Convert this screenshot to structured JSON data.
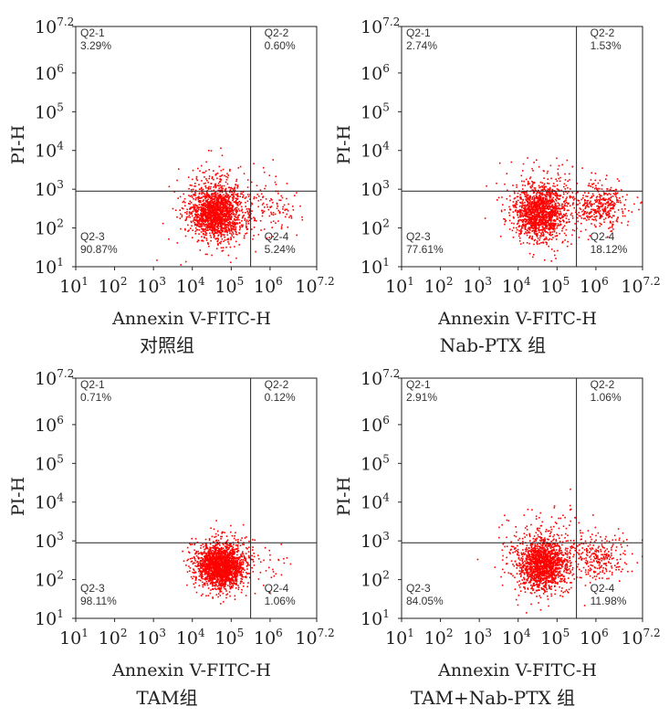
{
  "chart_data": [
    {
      "type": "scatter",
      "title": "对照组",
      "xlabel": "Annexin V-FITC-H",
      "ylabel": "PI-H",
      "xscale": "log",
      "yscale": "log",
      "xlim": [
        1,
        7.2
      ],
      "ylim": [
        1,
        7.2
      ],
      "x_ticks": [
        "1",
        "2",
        "3",
        "4",
        "5",
        "6",
        "7.2"
      ],
      "y_ticks": [
        "1",
        "2",
        "3",
        "4",
        "5",
        "6",
        "7.2"
      ],
      "gate_x": 5.5,
      "gate_y": 2.95,
      "quadrants": {
        "Q2-1": {
          "label": "Q2-1",
          "value": "3.29%"
        },
        "Q2-2": {
          "label": "Q2-2",
          "value": "0.60%"
        },
        "Q2-3": {
          "label": "Q2-3",
          "value": "90.87%"
        },
        "Q2-4": {
          "label": "Q2-4",
          "value": "5.24%"
        }
      },
      "clusters": [
        {
          "cx": 4.6,
          "cy": 2.4,
          "sx": 0.32,
          "sy": 0.32,
          "n": 1400
        },
        {
          "cx": 4.7,
          "cy": 2.6,
          "sx": 0.55,
          "sy": 0.6,
          "n": 350
        },
        {
          "cx": 6.0,
          "cy": 2.5,
          "sx": 0.4,
          "sy": 0.3,
          "n": 110
        }
      ],
      "color": "#ff0000"
    },
    {
      "type": "scatter",
      "title": "Nab-PTX 组",
      "xlabel": "Annexin V-FITC-H",
      "ylabel": "PI-H",
      "xscale": "log",
      "yscale": "log",
      "xlim": [
        1,
        7.2
      ],
      "ylim": [
        1,
        7.2
      ],
      "x_ticks": [
        "1",
        "2",
        "3",
        "4",
        "5",
        "6",
        "7.2"
      ],
      "y_ticks": [
        "1",
        "2",
        "3",
        "4",
        "5",
        "6",
        "7.2"
      ],
      "gate_x": 5.5,
      "gate_y": 2.95,
      "quadrants": {
        "Q2-1": {
          "label": "Q2-1",
          "value": "2.74%"
        },
        "Q2-2": {
          "label": "Q2-2",
          "value": "1.53%"
        },
        "Q2-3": {
          "label": "Q2-3",
          "value": "77.61%"
        },
        "Q2-4": {
          "label": "Q2-4",
          "value": "18.12%"
        }
      },
      "clusters": [
        {
          "cx": 4.55,
          "cy": 2.4,
          "sx": 0.32,
          "sy": 0.33,
          "n": 1200
        },
        {
          "cx": 4.6,
          "cy": 2.6,
          "sx": 0.55,
          "sy": 0.6,
          "n": 300
        },
        {
          "cx": 6.1,
          "cy": 2.6,
          "sx": 0.35,
          "sy": 0.3,
          "n": 380
        }
      ],
      "color": "#ff0000"
    },
    {
      "type": "scatter",
      "title": "TAM组",
      "xlabel": "Annexin V-FITC-H",
      "ylabel": "PI-H",
      "xscale": "log",
      "yscale": "log",
      "xlim": [
        1,
        7.2
      ],
      "ylim": [
        1,
        7.2
      ],
      "x_ticks": [
        "1",
        "2",
        "3",
        "4",
        "5",
        "6",
        "7.2"
      ],
      "y_ticks": [
        "1",
        "2",
        "3",
        "4",
        "5",
        "6",
        "7.2"
      ],
      "gate_x": 5.5,
      "gate_y": 2.95,
      "quadrants": {
        "Q2-1": {
          "label": "Q2-1",
          "value": "0.71%"
        },
        "Q2-2": {
          "label": "Q2-2",
          "value": "0.12%"
        },
        "Q2-3": {
          "label": "Q2-3",
          "value": "98.11%"
        },
        "Q2-4": {
          "label": "Q2-4",
          "value": "1.06%"
        }
      },
      "clusters": [
        {
          "cx": 4.7,
          "cy": 2.35,
          "sx": 0.3,
          "sy": 0.28,
          "n": 1800
        },
        {
          "cx": 4.8,
          "cy": 2.5,
          "sx": 0.45,
          "sy": 0.45,
          "n": 180
        },
        {
          "cx": 5.9,
          "cy": 2.5,
          "sx": 0.3,
          "sy": 0.3,
          "n": 25
        }
      ],
      "color": "#ff0000"
    },
    {
      "type": "scatter",
      "title": "TAM+Nab-PTX 组",
      "xlabel": "Annexin V-FITC-H",
      "ylabel": "PI-H",
      "xscale": "log",
      "yscale": "log",
      "xlim": [
        1,
        7.2
      ],
      "ylim": [
        1,
        7.2
      ],
      "x_ticks": [
        "1",
        "2",
        "3",
        "4",
        "5",
        "6",
        "7.2"
      ],
      "y_ticks": [
        "1",
        "2",
        "3",
        "4",
        "5",
        "6",
        "7.2"
      ],
      "gate_x": 5.5,
      "gate_y": 2.95,
      "quadrants": {
        "Q2-1": {
          "label": "Q2-1",
          "value": "2.91%"
        },
        "Q2-2": {
          "label": "Q2-2",
          "value": "1.06%"
        },
        "Q2-3": {
          "label": "Q2-3",
          "value": "84.05%"
        },
        "Q2-4": {
          "label": "Q2-4",
          "value": "11.98%"
        }
      },
      "clusters": [
        {
          "cx": 4.6,
          "cy": 2.4,
          "sx": 0.32,
          "sy": 0.33,
          "n": 1300
        },
        {
          "cx": 4.65,
          "cy": 2.65,
          "sx": 0.55,
          "sy": 0.6,
          "n": 300
        },
        {
          "cx": 6.1,
          "cy": 2.6,
          "sx": 0.35,
          "sy": 0.3,
          "n": 260
        }
      ],
      "color": "#ff0000"
    }
  ]
}
